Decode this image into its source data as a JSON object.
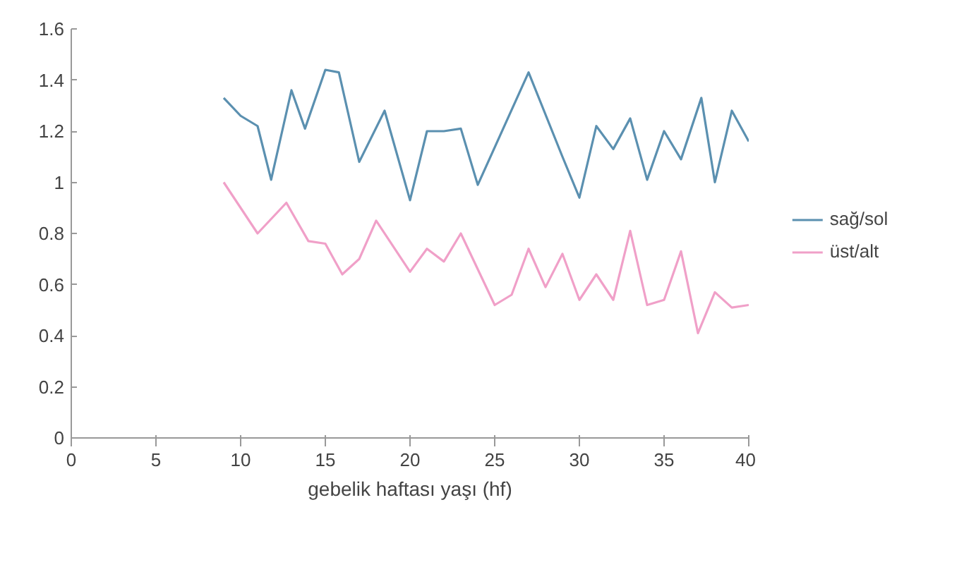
{
  "chart_data": {
    "type": "line",
    "xlabel": "gebelik haftası yaşı (hf)",
    "xlim": [
      0,
      40
    ],
    "xticks": [
      0,
      5,
      10,
      15,
      20,
      25,
      30,
      35,
      40
    ],
    "ylim": [
      0,
      1.6
    ],
    "yticks": [
      0,
      0.2,
      0.4,
      0.6,
      0.8,
      1,
      1.2,
      1.4,
      1.6
    ],
    "grid": false,
    "legend": "right",
    "marker": "none",
    "line_style": "solid",
    "series": [
      {
        "name": "sağ/sol",
        "color": "#5b90b0",
        "x": [
          9,
          10,
          11,
          11.8,
          13,
          13.8,
          15,
          15.8,
          17,
          18.5,
          20,
          21,
          22,
          23,
          24,
          27,
          29,
          30,
          31,
          32,
          33,
          34,
          35,
          36,
          37.2,
          38,
          39,
          40
        ],
        "values": [
          1.33,
          1.26,
          1.22,
          1.01,
          1.36,
          1.21,
          1.44,
          1.43,
          1.08,
          1.28,
          0.93,
          1.2,
          1.2,
          1.21,
          0.99,
          1.43,
          1.1,
          0.94,
          1.22,
          1.13,
          1.25,
          1.01,
          1.2,
          1.09,
          1.33,
          1.0,
          1.28,
          1.16
        ]
      },
      {
        "name": "üst/alt",
        "color": "#f0a0c8",
        "x": [
          9,
          11,
          12.7,
          14,
          15,
          16,
          17,
          18,
          20,
          21,
          22,
          23,
          25,
          26,
          27,
          28,
          29,
          30,
          31,
          32,
          33,
          34,
          35,
          36,
          37,
          38,
          39,
          40
        ],
        "values": [
          1.0,
          0.8,
          0.92,
          0.77,
          0.76,
          0.64,
          0.7,
          0.85,
          0.65,
          0.74,
          0.69,
          0.8,
          0.52,
          0.56,
          0.74,
          0.59,
          0.72,
          0.54,
          0.64,
          0.54,
          0.81,
          0.52,
          0.54,
          0.73,
          0.41,
          0.57,
          0.51,
          0.52
        ]
      }
    ]
  }
}
